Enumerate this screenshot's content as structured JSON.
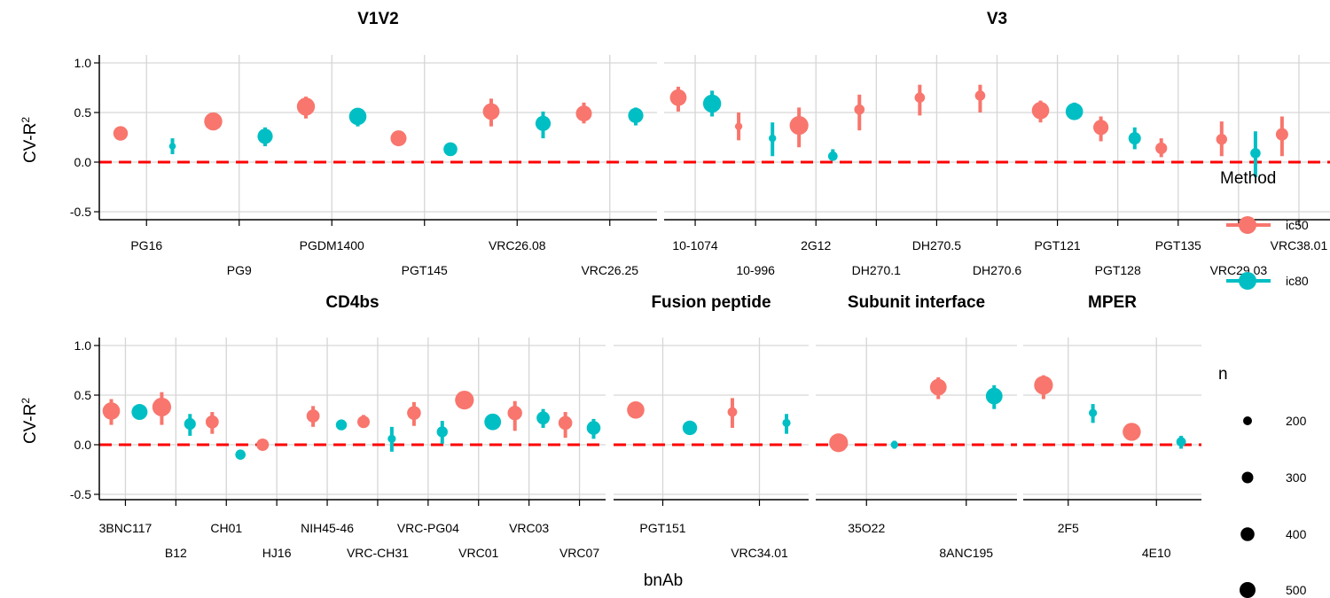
{
  "chart_data": {
    "type": "scatter",
    "subtype": "point-range faceted by epitope",
    "xlabel": "bnAb",
    "ylabel_main": "CV-R",
    "ylabel_sup": "2",
    "ylim": [
      -0.6,
      1.1
    ],
    "yticks": [
      "1.0",
      "0.5",
      "0.0",
      "-0.5"
    ],
    "reference_line": {
      "y": 0,
      "color": "#FF0000",
      "style": "dashed"
    },
    "colors": {
      "ic50": "#F8766D",
      "ic80": "#00BFC4"
    },
    "legend": {
      "method_title": "Method",
      "methods": [
        "ic50",
        "ic80"
      ],
      "size_title": "n",
      "sizes": [
        "200",
        "300",
        "400",
        "500"
      ]
    },
    "panels": [
      {
        "title": "V1V2",
        "bnabs": [
          "PG16",
          "PG9",
          "PGDM1400",
          "PGT145",
          "VRC26.08",
          "VRC26.25"
        ],
        "points": [
          {
            "bnab": "PG16",
            "method": "ic50",
            "y": 0.29,
            "lo": 0.24,
            "hi": 0.33,
            "n": 400
          },
          {
            "bnab": "PG16",
            "method": "ic80",
            "y": 0.16,
            "lo": 0.08,
            "hi": 0.24,
            "n": 180
          },
          {
            "bnab": "PG9",
            "method": "ic50",
            "y": 0.41,
            "lo": 0.38,
            "hi": 0.44,
            "n": 500
          },
          {
            "bnab": "PG9",
            "method": "ic80",
            "y": 0.26,
            "lo": 0.16,
            "hi": 0.35,
            "n": 420
          },
          {
            "bnab": "PGDM1400",
            "method": "ic50",
            "y": 0.56,
            "lo": 0.44,
            "hi": 0.66,
            "n": 500
          },
          {
            "bnab": "PGDM1400",
            "method": "ic80",
            "y": 0.46,
            "lo": 0.36,
            "hi": 0.52,
            "n": 480
          },
          {
            "bnab": "PGT145",
            "method": "ic50",
            "y": 0.24,
            "lo": 0.21,
            "hi": 0.27,
            "n": 440
          },
          {
            "bnab": "PGT145",
            "method": "ic80",
            "y": 0.13,
            "lo": 0.11,
            "hi": 0.15,
            "n": 380
          },
          {
            "bnab": "VRC26.08",
            "method": "ic50",
            "y": 0.51,
            "lo": 0.36,
            "hi": 0.64,
            "n": 460
          },
          {
            "bnab": "VRC26.08",
            "method": "ic80",
            "y": 0.39,
            "lo": 0.24,
            "hi": 0.51,
            "n": 420
          },
          {
            "bnab": "VRC26.25",
            "method": "ic50",
            "y": 0.49,
            "lo": 0.39,
            "hi": 0.6,
            "n": 440
          },
          {
            "bnab": "VRC26.25",
            "method": "ic80",
            "y": 0.47,
            "lo": 0.37,
            "hi": 0.55,
            "n": 420
          }
        ]
      },
      {
        "title": "V3",
        "bnabs": [
          "10-1074",
          "10-996",
          "2G12",
          "DH270.1",
          "DH270.5",
          "DH270.6",
          "PGT121",
          "PGT128",
          "PGT135",
          "VRC29.03",
          "VRC38.01"
        ],
        "points": [
          {
            "bnab": "10-1074",
            "method": "ic50",
            "y": 0.65,
            "lo": 0.51,
            "hi": 0.76,
            "n": 460
          },
          {
            "bnab": "10-1074",
            "method": "ic80",
            "y": 0.59,
            "lo": 0.46,
            "hi": 0.72,
            "n": 500
          },
          {
            "bnab": "10-996",
            "method": "ic50",
            "y": 0.36,
            "lo": 0.22,
            "hi": 0.5,
            "n": 200
          },
          {
            "bnab": "10-996",
            "method": "ic80",
            "y": 0.24,
            "lo": 0.06,
            "hi": 0.4,
            "n": 200
          },
          {
            "bnab": "2G12",
            "method": "ic50",
            "y": 0.37,
            "lo": 0.15,
            "hi": 0.55,
            "n": 520
          },
          {
            "bnab": "2G12",
            "method": "ic80",
            "y": 0.06,
            "lo": 0.02,
            "hi": 0.13,
            "n": 260
          },
          {
            "bnab": "DH270.1",
            "method": "ic50",
            "y": 0.53,
            "lo": 0.32,
            "hi": 0.68,
            "n": 280
          },
          {
            "bnab": "DH270.5",
            "method": "ic50",
            "y": 0.65,
            "lo": 0.47,
            "hi": 0.78,
            "n": 280
          },
          {
            "bnab": "DH270.6",
            "method": "ic50",
            "y": 0.67,
            "lo": 0.5,
            "hi": 0.78,
            "n": 280
          },
          {
            "bnab": "PGT121",
            "method": "ic50",
            "y": 0.52,
            "lo": 0.4,
            "hi": 0.62,
            "n": 480
          },
          {
            "bnab": "PGT121",
            "method": "ic80",
            "y": 0.51,
            "lo": 0.43,
            "hi": 0.6,
            "n": 480
          },
          {
            "bnab": "PGT128",
            "method": "ic50",
            "y": 0.35,
            "lo": 0.21,
            "hi": 0.46,
            "n": 420
          },
          {
            "bnab": "PGT128",
            "method": "ic80",
            "y": 0.24,
            "lo": 0.13,
            "hi": 0.35,
            "n": 340
          },
          {
            "bnab": "PGT135",
            "method": "ic50",
            "y": 0.14,
            "lo": 0.05,
            "hi": 0.24,
            "n": 320
          },
          {
            "bnab": "VRC29.03",
            "method": "ic50",
            "y": 0.23,
            "lo": 0.06,
            "hi": 0.41,
            "n": 300
          },
          {
            "bnab": "VRC29.03",
            "method": "ic80",
            "y": 0.09,
            "lo": -0.15,
            "hi": 0.31,
            "n": 280
          },
          {
            "bnab": "VRC38.01",
            "method": "ic50",
            "y": 0.28,
            "lo": 0.06,
            "hi": 0.46,
            "n": 340
          }
        ]
      },
      {
        "title": "CD4bs",
        "bnabs": [
          "3BNC117",
          "B12",
          "CH01",
          "HJ16",
          "NIH45-46",
          "VRC-CH31",
          "VRC-PG04",
          "VRC01",
          "VRC03",
          "VRC07"
        ],
        "points": [
          {
            "bnab": "3BNC117",
            "method": "ic50",
            "y": 0.34,
            "lo": 0.2,
            "hi": 0.46,
            "n": 480
          },
          {
            "bnab": "3BNC117",
            "method": "ic80",
            "y": 0.33,
            "lo": 0.3,
            "hi": 0.36,
            "n": 440
          },
          {
            "bnab": "B12",
            "method": "ic50",
            "y": 0.38,
            "lo": 0.2,
            "hi": 0.53,
            "n": 520
          },
          {
            "bnab": "B12",
            "method": "ic80",
            "y": 0.21,
            "lo": 0.09,
            "hi": 0.31,
            "n": 320
          },
          {
            "bnab": "CH01",
            "method": "ic50",
            "y": 0.23,
            "lo": 0.11,
            "hi": 0.33,
            "n": 360
          },
          {
            "bnab": "CH01",
            "method": "ic80",
            "y": -0.1,
            "lo": -0.12,
            "hi": -0.08,
            "n": 280
          },
          {
            "bnab": "HJ16",
            "method": "ic50",
            "y": 0.0,
            "lo": -0.03,
            "hi": 0.03,
            "n": 340
          },
          {
            "bnab": "NIH45-46",
            "method": "ic50",
            "y": 0.29,
            "lo": 0.18,
            "hi": 0.39,
            "n": 360
          },
          {
            "bnab": "NIH45-46",
            "method": "ic80",
            "y": 0.2,
            "lo": 0.17,
            "hi": 0.23,
            "n": 300
          },
          {
            "bnab": "VRC-CH31",
            "method": "ic50",
            "y": 0.23,
            "lo": 0.17,
            "hi": 0.3,
            "n": 340
          },
          {
            "bnab": "VRC-CH31",
            "method": "ic80",
            "y": 0.06,
            "lo": -0.07,
            "hi": 0.18,
            "n": 220
          },
          {
            "bnab": "VRC-PG04",
            "method": "ic50",
            "y": 0.32,
            "lo": 0.19,
            "hi": 0.43,
            "n": 380
          },
          {
            "bnab": "VRC-PG04",
            "method": "ic80",
            "y": 0.13,
            "lo": 0.01,
            "hi": 0.24,
            "n": 300
          },
          {
            "bnab": "VRC01",
            "method": "ic50",
            "y": 0.45,
            "lo": 0.41,
            "hi": 0.49,
            "n": 520
          },
          {
            "bnab": "VRC01",
            "method": "ic80",
            "y": 0.23,
            "lo": 0.19,
            "hi": 0.27,
            "n": 460
          },
          {
            "bnab": "VRC03",
            "method": "ic50",
            "y": 0.32,
            "lo": 0.14,
            "hi": 0.44,
            "n": 400
          },
          {
            "bnab": "VRC03",
            "method": "ic80",
            "y": 0.27,
            "lo": 0.17,
            "hi": 0.36,
            "n": 360
          },
          {
            "bnab": "VRC07",
            "method": "ic50",
            "y": 0.22,
            "lo": 0.07,
            "hi": 0.33,
            "n": 380
          },
          {
            "bnab": "VRC07",
            "method": "ic80",
            "y": 0.17,
            "lo": 0.06,
            "hi": 0.26,
            "n": 380
          }
        ]
      },
      {
        "title": "Fusion peptide",
        "bnabs": [
          "PGT151",
          "VRC34.01"
        ],
        "points": [
          {
            "bnab": "PGT151",
            "method": "ic50",
            "y": 0.35,
            "lo": 0.31,
            "hi": 0.38,
            "n": 480
          },
          {
            "bnab": "PGT151",
            "method": "ic80",
            "y": 0.17,
            "lo": 0.14,
            "hi": 0.2,
            "n": 400
          },
          {
            "bnab": "VRC34.01",
            "method": "ic50",
            "y": 0.33,
            "lo": 0.17,
            "hi": 0.47,
            "n": 260
          },
          {
            "bnab": "VRC34.01",
            "method": "ic80",
            "y": 0.22,
            "lo": 0.11,
            "hi": 0.31,
            "n": 220
          }
        ]
      },
      {
        "title": "Subunit interface",
        "bnabs": [
          "35O22",
          "8ANC195"
        ],
        "points": [
          {
            "bnab": "35O22",
            "method": "ic50",
            "y": 0.02,
            "lo": -0.01,
            "hi": 0.05,
            "n": 520
          },
          {
            "bnab": "35O22",
            "method": "ic80",
            "y": 0.0,
            "lo": -0.04,
            "hi": 0.04,
            "n": 200
          },
          {
            "bnab": "8ANC195",
            "method": "ic50",
            "y": 0.58,
            "lo": 0.46,
            "hi": 0.68,
            "n": 460
          },
          {
            "bnab": "8ANC195",
            "method": "ic80",
            "y": 0.49,
            "lo": 0.36,
            "hi": 0.6,
            "n": 460
          }
        ]
      },
      {
        "title": "MPER",
        "bnabs": [
          "2F5",
          "4E10"
        ],
        "points": [
          {
            "bnab": "2F5",
            "method": "ic50",
            "y": 0.6,
            "lo": 0.46,
            "hi": 0.7,
            "n": 520
          },
          {
            "bnab": "2F5",
            "method": "ic80",
            "y": 0.32,
            "lo": 0.22,
            "hi": 0.41,
            "n": 220
          },
          {
            "bnab": "4E10",
            "method": "ic50",
            "y": 0.13,
            "lo": 0.1,
            "hi": 0.16,
            "n": 500
          },
          {
            "bnab": "4E10",
            "method": "ic80",
            "y": 0.03,
            "lo": -0.04,
            "hi": 0.09,
            "n": 260
          }
        ]
      }
    ]
  }
}
